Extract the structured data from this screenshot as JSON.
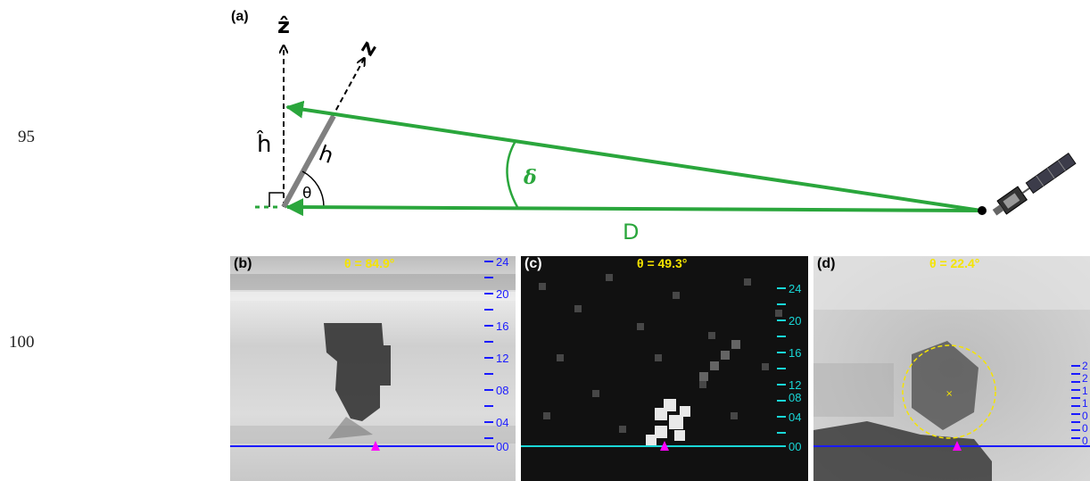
{
  "line_numbers": [
    "95",
    "100"
  ],
  "diagram": {
    "panel_label": "(a)",
    "zhat_label": "ẑ",
    "z_label": "z",
    "hhat_label": "ĥ",
    "h_label": "h",
    "theta_label": "θ",
    "delta_label": "δ",
    "D_label": "D",
    "colors": {
      "ray": "#2aa63c",
      "tower": "#808080",
      "axis": "#000000"
    },
    "icons": [
      "satellite-icon"
    ]
  },
  "panels": [
    {
      "label": "(b)",
      "theta": "θ = 84.9°",
      "axis_color": "#1a1aff",
      "ticks": [
        "24",
        "20",
        "16",
        "12",
        "08",
        "04",
        "00"
      ]
    },
    {
      "label": "(c)",
      "theta": "θ = 49.3°",
      "axis_color": "#19d7d7",
      "ticks": [
        "24",
        "20",
        "16",
        "12",
        "08",
        "04",
        "00"
      ]
    },
    {
      "label": "(d)",
      "theta": "θ = 22.4°",
      "axis_color": "#1a1aff",
      "ticks": [
        "2",
        "2",
        "1",
        "1",
        "0",
        "0",
        "0"
      ]
    }
  ],
  "colors": {
    "marker": "#ff00ff",
    "circle": "#f5e400",
    "theta_text": "#f5e400"
  }
}
